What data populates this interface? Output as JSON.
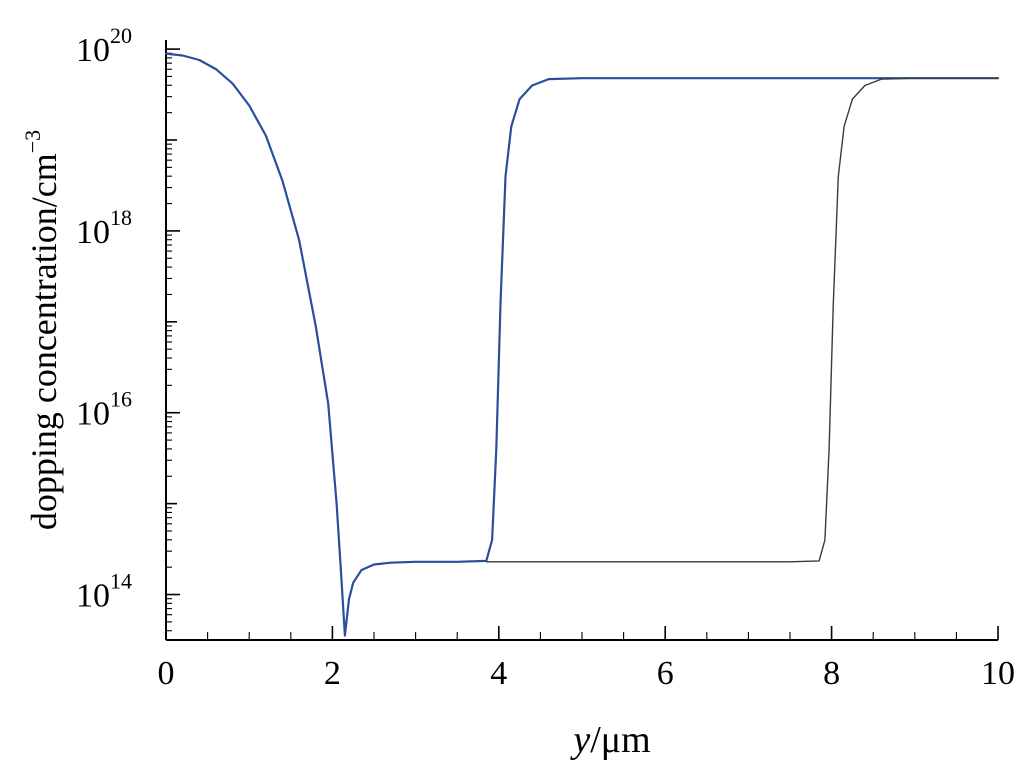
{
  "chart_data": {
    "type": "line",
    "title": "",
    "xlabel_var": "y",
    "xlabel_unit": "/μm",
    "ylabel_text": "dopping concentration/cm",
    "ylabel_exp": "−3",
    "yscale": "log",
    "xlim": [
      0,
      10
    ],
    "ylim_log10": [
      13.5,
      20.1
    ],
    "x_ticks": [
      {
        "value": 0,
        "label": "0"
      },
      {
        "value": 2,
        "label": "2"
      },
      {
        "value": 4,
        "label": "4"
      },
      {
        "value": 6,
        "label": "6"
      },
      {
        "value": 8,
        "label": "8"
      },
      {
        "value": 10,
        "label": "10"
      }
    ],
    "y_ticks": [
      {
        "log10": 14,
        "base": "10",
        "exp": "14"
      },
      {
        "log10": 16,
        "base": "10",
        "exp": "16"
      },
      {
        "log10": 18,
        "base": "10",
        "exp": "18"
      },
      {
        "log10": 20,
        "base": "10",
        "exp": "20"
      }
    ],
    "grid": false,
    "legend": "none",
    "series": [
      {
        "color": "#2a4d9c",
        "stroke_width": 2.2,
        "points": [
          [
            0.0,
            19.95
          ],
          [
            0.2,
            19.93
          ],
          [
            0.4,
            19.88
          ],
          [
            0.6,
            19.78
          ],
          [
            0.8,
            19.62
          ],
          [
            1.0,
            19.38
          ],
          [
            1.2,
            19.05
          ],
          [
            1.4,
            18.55
          ],
          [
            1.6,
            17.9
          ],
          [
            1.8,
            16.95
          ],
          [
            1.95,
            16.1
          ],
          [
            2.05,
            15.0
          ],
          [
            2.1,
            14.3
          ],
          [
            2.15,
            13.55
          ],
          [
            2.2,
            13.95
          ],
          [
            2.25,
            14.13
          ],
          [
            2.35,
            14.27
          ],
          [
            2.5,
            14.33
          ],
          [
            2.7,
            14.35
          ],
          [
            3.0,
            14.36
          ],
          [
            3.5,
            14.36
          ],
          [
            3.85,
            14.37
          ],
          [
            3.92,
            14.6
          ],
          [
            3.97,
            15.6
          ],
          [
            4.02,
            17.2
          ],
          [
            4.08,
            18.6
          ],
          [
            4.15,
            19.15
          ],
          [
            4.25,
            19.45
          ],
          [
            4.4,
            19.6
          ],
          [
            4.6,
            19.67
          ],
          [
            5.0,
            19.68
          ],
          [
            6.0,
            19.68
          ],
          [
            7.0,
            19.68
          ],
          [
            8.0,
            19.68
          ],
          [
            9.0,
            19.68
          ],
          [
            10.0,
            19.68
          ]
        ]
      },
      {
        "color": "#3a3a3a",
        "stroke_width": 1.4,
        "points": [
          [
            3.85,
            14.36
          ],
          [
            4.5,
            14.36
          ],
          [
            5.5,
            14.36
          ],
          [
            6.5,
            14.36
          ],
          [
            7.5,
            14.36
          ],
          [
            7.85,
            14.37
          ],
          [
            7.92,
            14.6
          ],
          [
            7.97,
            15.6
          ],
          [
            8.02,
            17.2
          ],
          [
            8.08,
            18.6
          ],
          [
            8.15,
            19.15
          ],
          [
            8.25,
            19.45
          ],
          [
            8.4,
            19.6
          ],
          [
            8.6,
            19.67
          ],
          [
            9.0,
            19.68
          ],
          [
            10.0,
            19.68
          ]
        ]
      }
    ]
  }
}
